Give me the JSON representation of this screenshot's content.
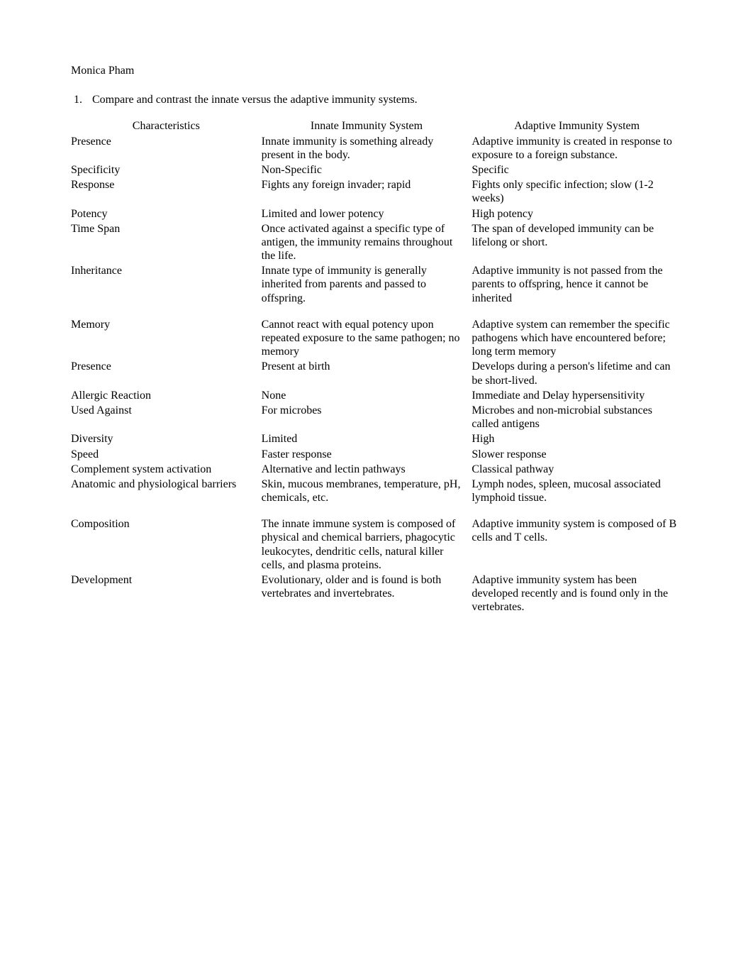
{
  "author": "Monica Pham",
  "question_number": "1.",
  "question_text": "Compare and contrast the innate versus the adaptive immunity systems.",
  "headers": {
    "characteristics": "Characteristics",
    "innate": "Innate Immunity System",
    "adaptive": "Adaptive Immunity System"
  },
  "rows": [
    {
      "char": "Presence",
      "innate": "Innate immunity is something already present in the body.",
      "adaptive": "Adaptive immunity is created in response to exposure to a foreign substance."
    },
    {
      "char": "Specificity",
      "innate": "Non-Specific",
      "adaptive": "Specific"
    },
    {
      "char": "Response",
      "innate": "Fights any foreign invader; rapid",
      "adaptive": "Fights only specific infection; slow (1-2 weeks)"
    },
    {
      "char": "Potency",
      "innate": "Limited and lower potency",
      "adaptive": "High potency"
    },
    {
      "char": "Time Span",
      "innate": "Once activated against a specific type of antigen, the immunity remains throughout the life.",
      "adaptive": "The span of developed immunity can be lifelong or short."
    },
    {
      "char": "Inheritance",
      "innate": "Innate type of immunity is generally inherited from parents and passed to offspring.",
      "adaptive": "Adaptive immunity is not passed from the parents   to offspring, hence it cannot be inherited"
    },
    {
      "char": "Memory",
      "innate": "Cannot react with equal potency upon repeated exposure to the same pathogen; no memory",
      "adaptive": "Adaptive system can remember the specific pathogens which have encountered before; long term memory",
      "gap": true
    },
    {
      "char": "Presence",
      "innate": "Present at birth",
      "adaptive": "Develops during a person's lifetime and can be short-lived."
    },
    {
      "char": "Allergic Reaction",
      "innate": "None",
      "adaptive": "Immediate and Delay hypersensitivity"
    },
    {
      "char": "Used Against",
      "innate": "For microbes",
      "adaptive": "Microbes and non-microbial substances called antigens"
    },
    {
      "char": "Diversity",
      "innate": "Limited",
      "adaptive": "High"
    },
    {
      "char": "Speed",
      "innate": "Faster response",
      "adaptive": "Slower response"
    },
    {
      "char": "Complement system activation",
      "innate": "Alternative and lectin pathways",
      "adaptive": "Classical pathway"
    },
    {
      "char": "Anatomic and physiological barriers",
      "innate": "Skin, mucous membranes, temperature, pH, chemicals, etc.",
      "adaptive": "Lymph nodes, spleen, mucosal associated lymphoid tissue."
    },
    {
      "char": "Composition",
      "innate": "The innate immune system is composed of physical and chemical barriers, phagocytic leukocytes, dendritic cells, natural killer cells, and plasma proteins.",
      "adaptive": "Adaptive immunity system is composed of B cells and T cells.",
      "gap": true
    },
    {
      "char": "Development",
      "innate": "Evolutionary, older and is found is both vertebrates and invertebrates.",
      "adaptive": "Adaptive immunity system has been developed recently and is found only in the vertebrates."
    }
  ]
}
